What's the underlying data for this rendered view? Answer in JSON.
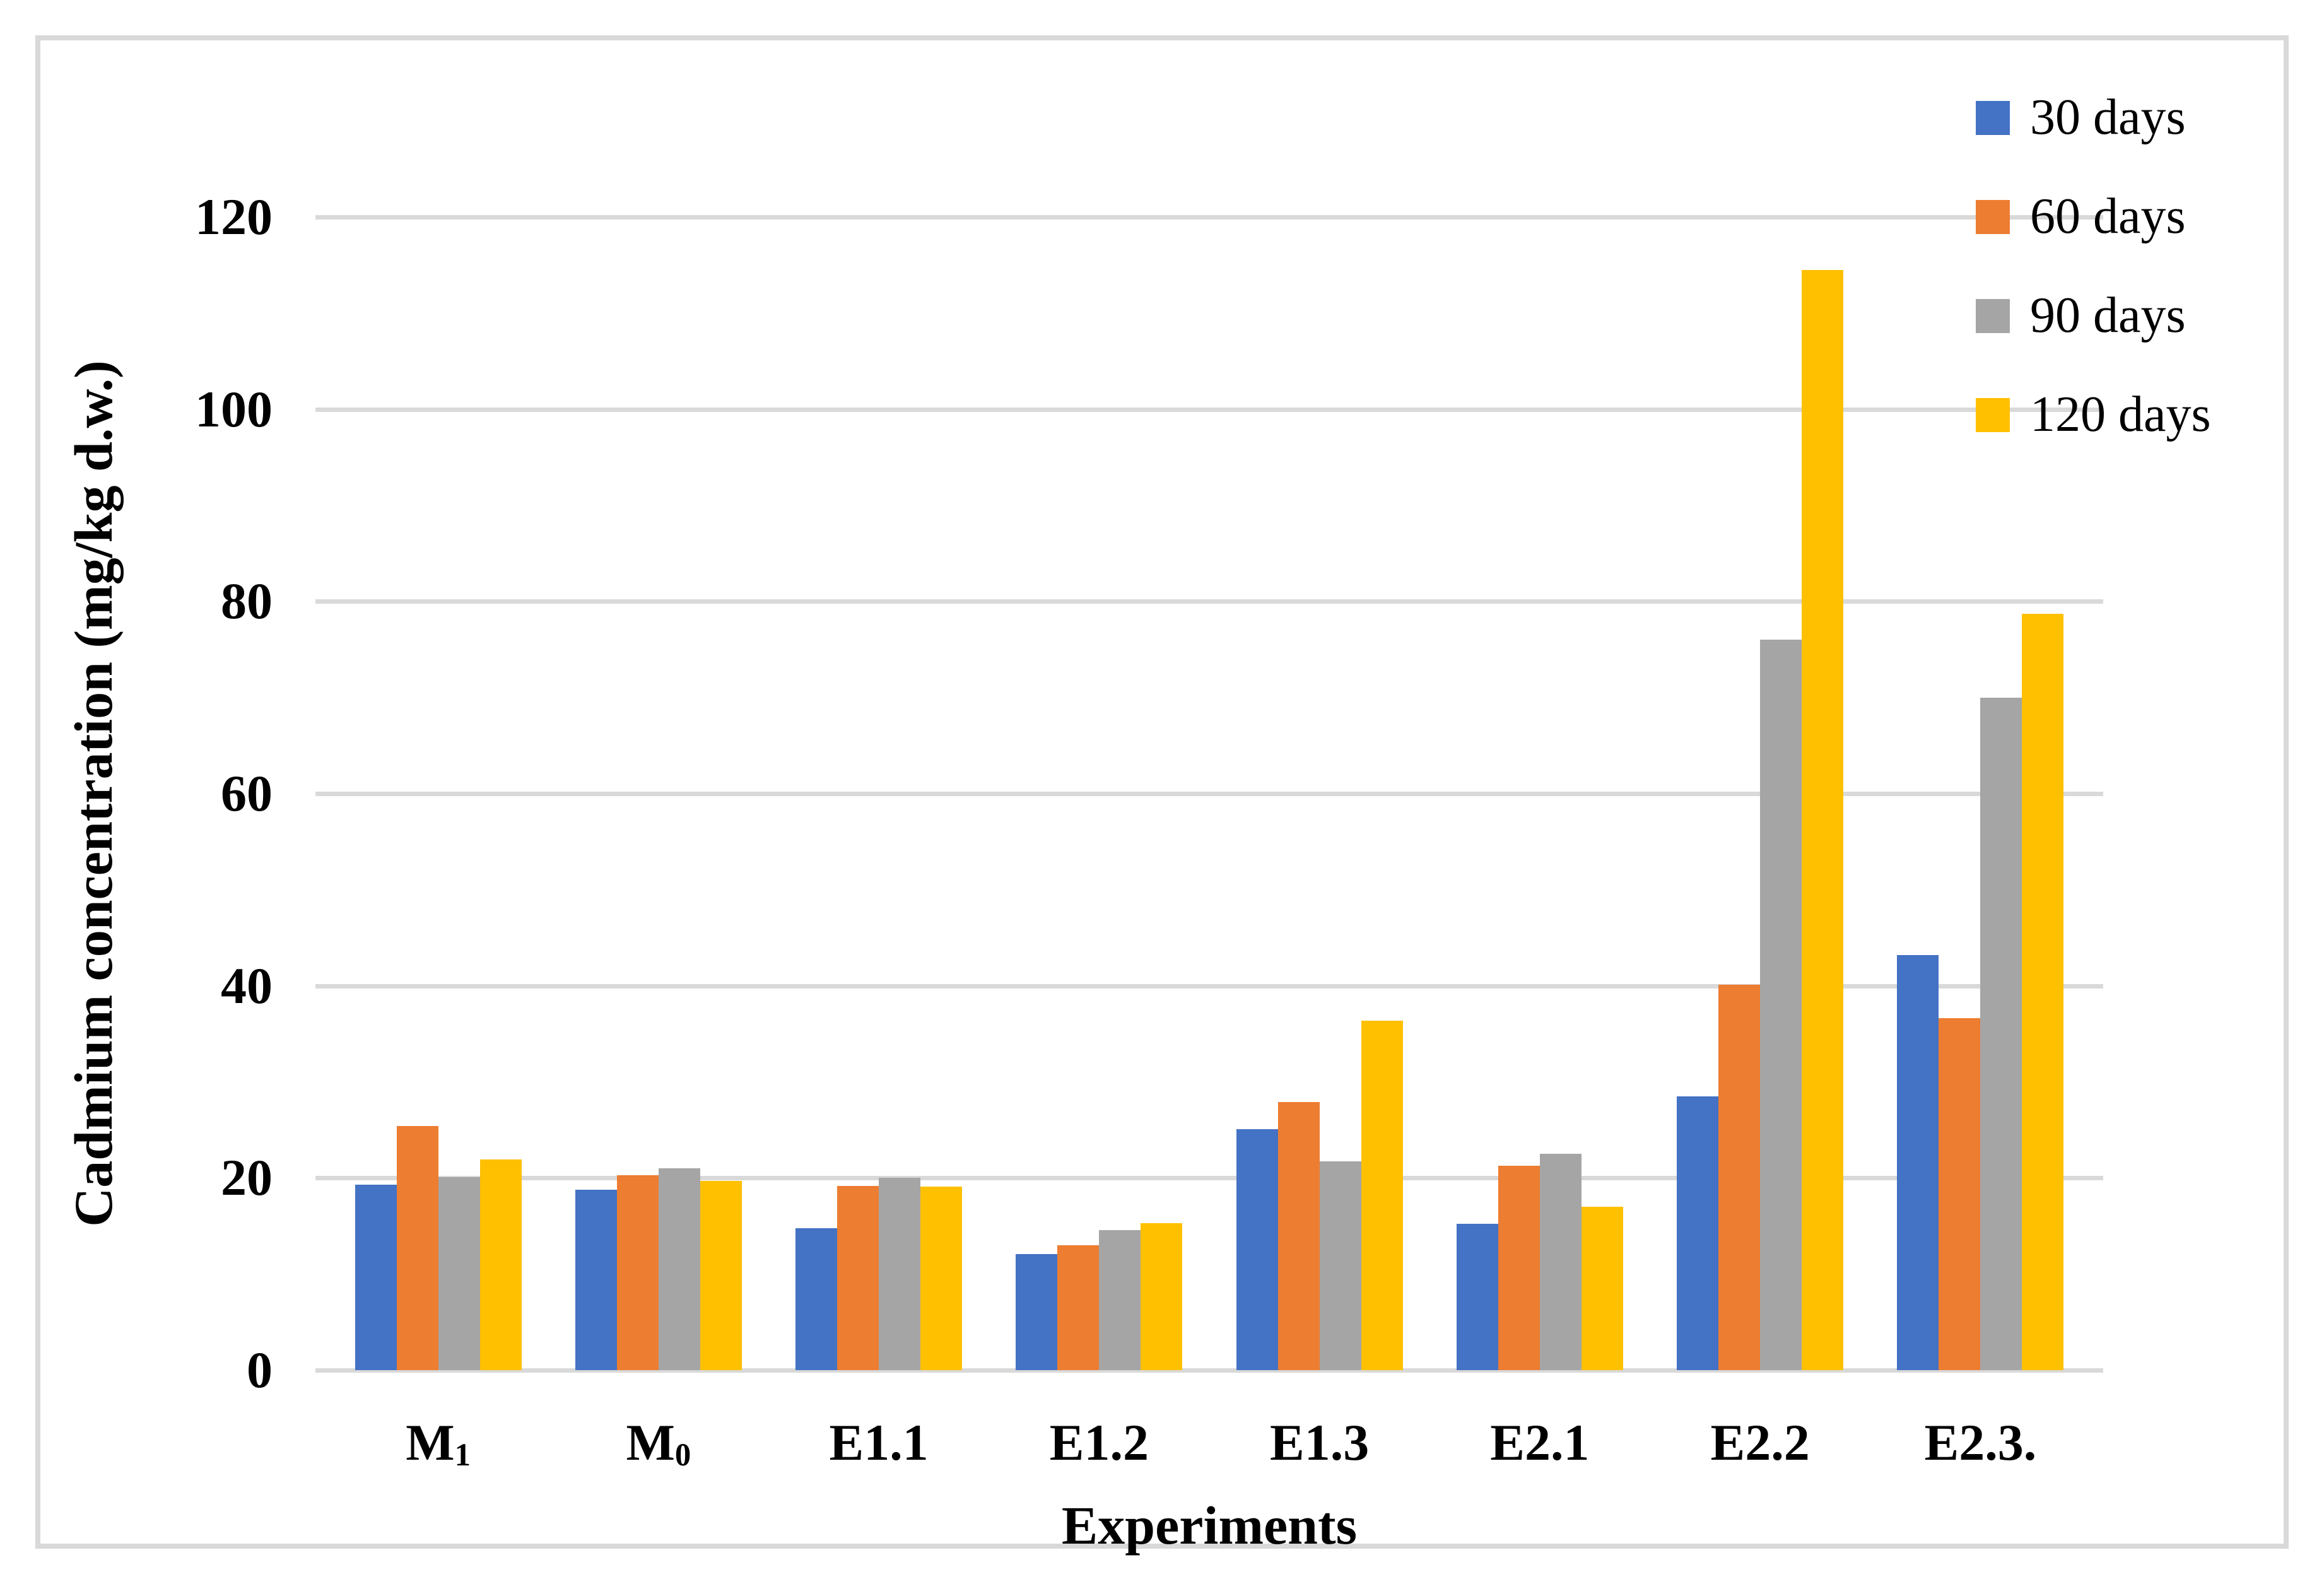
{
  "axes": {
    "y_title": "Cadmium concentration (mg/kg d.w.)",
    "x_title": "Experiments",
    "y_ticks": [
      0,
      20,
      40,
      60,
      80,
      100,
      120
    ]
  },
  "colors": {
    "series_30_days": "#4472C4",
    "series_60_days": "#ED7D31",
    "series_90_days": "#A5A5A5",
    "series_120_days": "#FFC000",
    "gridline": "#D9D9D9",
    "frame_border": "#D9D9D9",
    "text": "#000000",
    "background": "#FFFFFF"
  },
  "legend": {
    "items": [
      "30 days",
      "60 days",
      "90 days",
      "120 days"
    ]
  },
  "chart_data": {
    "type": "bar",
    "title": "",
    "xlabel": "Experiments",
    "ylabel": "Cadmium concentration (mg/kg d.w.)",
    "ylim": [
      0,
      120
    ],
    "ytick_step": 20,
    "grid": true,
    "legend_position": "top-right",
    "categories": [
      "M1",
      "M0",
      "E1.1",
      "E1.2",
      "E1.3",
      "E2.1",
      "E2.2",
      "E2.3."
    ],
    "category_display": [
      {
        "base": "M",
        "sub": "1"
      },
      {
        "base": "M",
        "sub": "0"
      },
      {
        "base": "E1.1",
        "sub": ""
      },
      {
        "base": "E1.2",
        "sub": ""
      },
      {
        "base": "E1.3",
        "sub": ""
      },
      {
        "base": "E2.1",
        "sub": ""
      },
      {
        "base": "E2.2",
        "sub": ""
      },
      {
        "base": "E2.3.",
        "sub": ""
      }
    ],
    "series": [
      {
        "name": "30 days",
        "color": "#4472C4",
        "values": [
          19.3,
          18.8,
          14.8,
          12.1,
          25.1,
          15.2,
          28.5,
          43.2
        ]
      },
      {
        "name": "60 days",
        "color": "#ED7D31",
        "values": [
          25.4,
          20.3,
          19.2,
          13.0,
          27.9,
          21.3,
          40.1,
          36.6
        ]
      },
      {
        "name": "90 days",
        "color": "#A5A5A5",
        "values": [
          20.1,
          21.0,
          20.0,
          14.6,
          21.7,
          22.5,
          76.0,
          70.0
        ]
      },
      {
        "name": "120 days",
        "color": "#FFC000",
        "values": [
          21.9,
          19.7,
          19.1,
          15.3,
          36.4,
          17.0,
          114.5,
          78.7
        ]
      }
    ]
  }
}
